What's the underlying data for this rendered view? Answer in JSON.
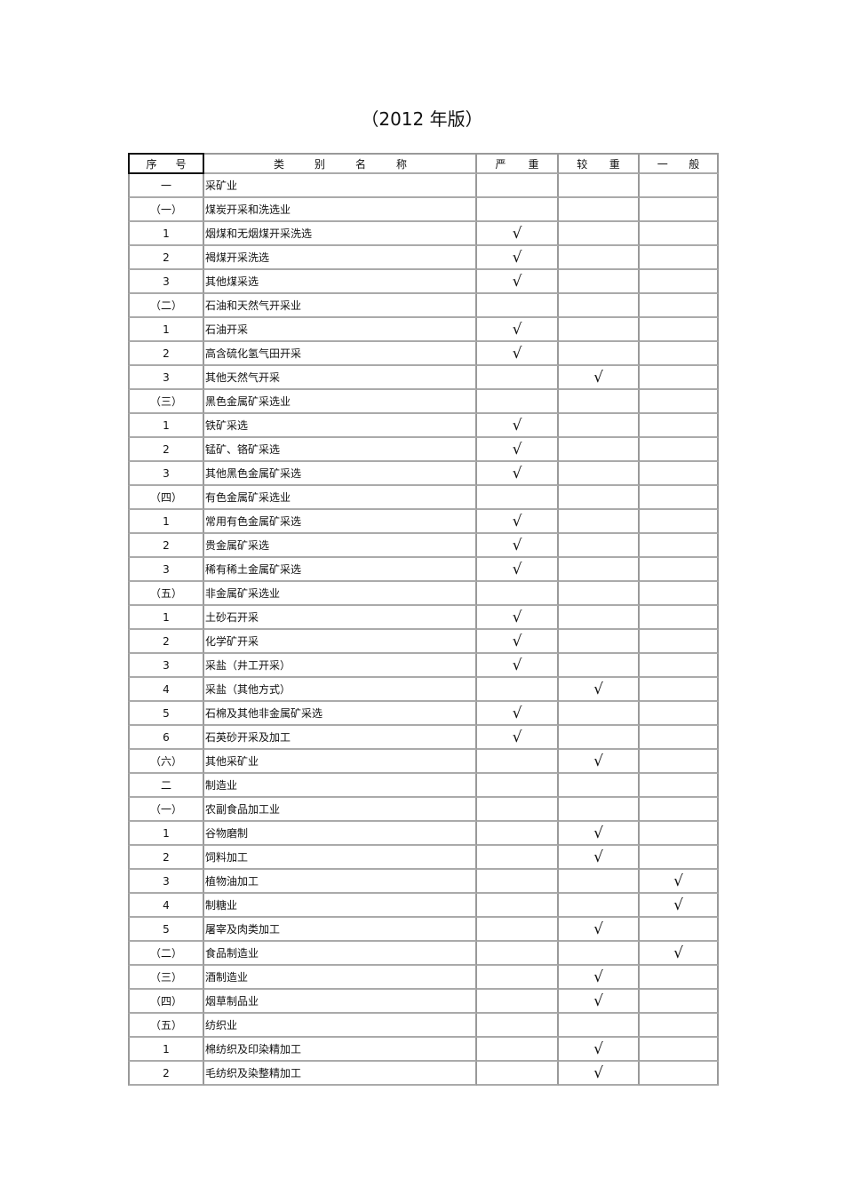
{
  "title": "（2012 年版）",
  "headers": [
    "序号",
    "类别名称",
    "严重",
    "较重",
    "一般"
  ],
  "check_mark": "√",
  "rows": [
    {
      "no": "一",
      "name": "采矿业",
      "level": 0
    },
    {
      "no": "（一）",
      "name": "煤炭开采和洗选业",
      "level": 0
    },
    {
      "no": "1",
      "name": "烟煤和无烟煤开采洗选",
      "level": 1
    },
    {
      "no": "2",
      "name": "褐煤开采洗选",
      "level": 1
    },
    {
      "no": "3",
      "name": "其他煤采选",
      "level": 1
    },
    {
      "no": "（二）",
      "name": "石油和天然气开采业",
      "level": 0
    },
    {
      "no": "1",
      "name": "石油开采",
      "level": 1
    },
    {
      "no": "2",
      "name": "高含硫化氢气田开采",
      "level": 1
    },
    {
      "no": "3",
      "name": "其他天然气开采",
      "level": 2
    },
    {
      "no": "（三）",
      "name": "黑色金属矿采选业",
      "level": 0
    },
    {
      "no": "1",
      "name": "铁矿采选",
      "level": 1
    },
    {
      "no": "2",
      "name": "锰矿、铬矿采选",
      "level": 1
    },
    {
      "no": "3",
      "name": "其他黑色金属矿采选",
      "level": 1
    },
    {
      "no": "（四）",
      "name": "有色金属矿采选业",
      "level": 0
    },
    {
      "no": "1",
      "name": "常用有色金属矿采选",
      "level": 1
    },
    {
      "no": "2",
      "name": "贵金属矿采选",
      "level": 1
    },
    {
      "no": "3",
      "name": "稀有稀土金属矿采选",
      "level": 1
    },
    {
      "no": "（五）",
      "name": "非金属矿采选业",
      "level": 0
    },
    {
      "no": "1",
      "name": "土砂石开采",
      "level": 1
    },
    {
      "no": "2",
      "name": "化学矿开采",
      "level": 1
    },
    {
      "no": "3",
      "name": "采盐（井工开采）",
      "level": 1
    },
    {
      "no": "4",
      "name": "采盐（其他方式）",
      "level": 2
    },
    {
      "no": "5",
      "name": "石棉及其他非金属矿采选",
      "level": 1
    },
    {
      "no": "6",
      "name": "石英砂开采及加工",
      "level": 1
    },
    {
      "no": "（六）",
      "name": "其他采矿业",
      "level": 2
    },
    {
      "no": "二",
      "name": "制造业",
      "level": 0
    },
    {
      "no": "（一）",
      "name": "农副食品加工业",
      "level": 0
    },
    {
      "no": "1",
      "name": "谷物磨制",
      "level": 2
    },
    {
      "no": "2",
      "name": "饲料加工",
      "level": 2
    },
    {
      "no": "3",
      "name": "植物油加工",
      "level": 3
    },
    {
      "no": "4",
      "name": "制糖业",
      "level": 3
    },
    {
      "no": "5",
      "name": "屠宰及肉类加工",
      "level": 2
    },
    {
      "no": "（二）",
      "name": "食品制造业",
      "level": 3
    },
    {
      "no": "（三）",
      "name": "酒制造业",
      "level": 2
    },
    {
      "no": "（四）",
      "name": "烟草制品业",
      "level": 2
    },
    {
      "no": "（五）",
      "name": "纺织业",
      "level": 0
    },
    {
      "no": "1",
      "name": "棉纺织及印染精加工",
      "level": 2
    },
    {
      "no": "2",
      "name": "毛纺织及染整精加工",
      "level": 2
    }
  ]
}
